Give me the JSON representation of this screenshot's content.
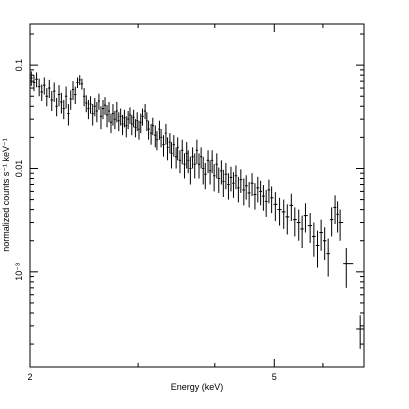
{
  "chart_data": {
    "type": "scatter",
    "title": "",
    "xlabel": "Energy (keV)",
    "ylabel": "normalized counts s⁻¹ keV⁻¹",
    "x_scale": "log",
    "y_scale": "log",
    "xlim": [
      2.0,
      7.0
    ],
    "ylim": [
      0.00012,
      0.25
    ],
    "x_ticks": [
      {
        "value": 2,
        "label": "2"
      },
      {
        "value": 5,
        "label": "5"
      }
    ],
    "y_ticks": [
      {
        "value": 0.1,
        "label": "0.1"
      },
      {
        "value": 0.01,
        "label": "0.01"
      },
      {
        "value": 0.001,
        "label": "10⁻³"
      }
    ],
    "grid": false,
    "legend": "none",
    "series": [
      {
        "color": "#000000",
        "points": [
          [
            2.01,
            0.075,
            0.012
          ],
          [
            2.03,
            0.068,
            0.012
          ],
          [
            2.05,
            0.073,
            0.012
          ],
          [
            2.07,
            0.062,
            0.012
          ],
          [
            2.09,
            0.055,
            0.01
          ],
          [
            2.11,
            0.064,
            0.012
          ],
          [
            2.13,
            0.05,
            0.01
          ],
          [
            2.15,
            0.06,
            0.012
          ],
          [
            2.17,
            0.046,
            0.01
          ],
          [
            2.19,
            0.056,
            0.012
          ],
          [
            2.21,
            0.04,
            0.008
          ],
          [
            2.23,
            0.052,
            0.012
          ],
          [
            2.25,
            0.044,
            0.01
          ],
          [
            2.27,
            0.038,
            0.008
          ],
          [
            2.29,
            0.05,
            0.012
          ],
          [
            2.31,
            0.034,
            0.008
          ],
          [
            2.33,
            0.047,
            0.01
          ],
          [
            2.35,
            0.058,
            0.012
          ],
          [
            2.37,
            0.052,
            0.01
          ],
          [
            2.39,
            0.068,
            0.008
          ],
          [
            2.41,
            0.072,
            0.008
          ],
          [
            2.43,
            0.066,
            0.008
          ],
          [
            2.45,
            0.05,
            0.01
          ],
          [
            2.47,
            0.043,
            0.008
          ],
          [
            2.49,
            0.038,
            0.008
          ],
          [
            2.51,
            0.042,
            0.008
          ],
          [
            2.53,
            0.034,
            0.008
          ],
          [
            2.55,
            0.04,
            0.008
          ],
          [
            2.57,
            0.036,
            0.008
          ],
          [
            2.59,
            0.045,
            0.008
          ],
          [
            2.61,
            0.032,
            0.008
          ],
          [
            2.63,
            0.038,
            0.008
          ],
          [
            2.65,
            0.041,
            0.008
          ],
          [
            2.67,
            0.033,
            0.008
          ],
          [
            2.69,
            0.036,
            0.008
          ],
          [
            2.71,
            0.028,
            0.006
          ],
          [
            2.73,
            0.034,
            0.008
          ],
          [
            2.75,
            0.03,
            0.006
          ],
          [
            2.77,
            0.036,
            0.008
          ],
          [
            2.79,
            0.029,
            0.006
          ],
          [
            2.81,
            0.032,
            0.006
          ],
          [
            2.83,
            0.027,
            0.006
          ],
          [
            2.85,
            0.031,
            0.006
          ],
          [
            2.87,
            0.026,
            0.006
          ],
          [
            2.89,
            0.03,
            0.006
          ],
          [
            2.91,
            0.033,
            0.006
          ],
          [
            2.93,
            0.027,
            0.006
          ],
          [
            2.95,
            0.031,
            0.006
          ],
          [
            2.97,
            0.025,
            0.005
          ],
          [
            2.99,
            0.029,
            0.006
          ],
          [
            3.01,
            0.024,
            0.005
          ],
          [
            3.03,
            0.028,
            0.006
          ],
          [
            3.05,
            0.032,
            0.006
          ],
          [
            3.08,
            0.036,
            0.006
          ],
          [
            3.1,
            0.029,
            0.006
          ],
          [
            3.12,
            0.024,
            0.005
          ],
          [
            3.15,
            0.022,
            0.005
          ],
          [
            3.17,
            0.026,
            0.005
          ],
          [
            3.2,
            0.021,
            0.005
          ],
          [
            3.22,
            0.019,
            0.004
          ],
          [
            3.25,
            0.024,
            0.005
          ],
          [
            3.27,
            0.02,
            0.004
          ],
          [
            3.3,
            0.017,
            0.004
          ],
          [
            3.33,
            0.022,
            0.005
          ],
          [
            3.35,
            0.016,
            0.004
          ],
          [
            3.38,
            0.018,
            0.004
          ],
          [
            3.4,
            0.014,
            0.004
          ],
          [
            3.43,
            0.017,
            0.004
          ],
          [
            3.46,
            0.013,
            0.003
          ],
          [
            3.48,
            0.016,
            0.004
          ],
          [
            3.51,
            0.012,
            0.003
          ],
          [
            3.54,
            0.015,
            0.004
          ],
          [
            3.57,
            0.011,
            0.003
          ],
          [
            3.6,
            0.014,
            0.004
          ],
          [
            3.62,
            0.012,
            0.003
          ],
          [
            3.65,
            0.01,
            0.003
          ],
          [
            3.68,
            0.013,
            0.003
          ],
          [
            3.71,
            0.011,
            0.003
          ],
          [
            3.74,
            0.015,
            0.004
          ],
          [
            3.77,
            0.011,
            0.003
          ],
          [
            3.8,
            0.013,
            0.003
          ],
          [
            3.83,
            0.01,
            0.003
          ],
          [
            3.86,
            0.0088,
            0.0025
          ],
          [
            3.9,
            0.012,
            0.003
          ],
          [
            3.93,
            0.0095,
            0.0025
          ],
          [
            3.96,
            0.012,
            0.003
          ],
          [
            3.99,
            0.0085,
            0.0025
          ],
          [
            4.03,
            0.011,
            0.003
          ],
          [
            4.06,
            0.008,
            0.0022
          ],
          [
            4.1,
            0.0095,
            0.0025
          ],
          [
            4.13,
            0.0075,
            0.0022
          ],
          [
            4.17,
            0.0088,
            0.0025
          ],
          [
            4.21,
            0.007,
            0.002
          ],
          [
            4.25,
            0.0082,
            0.0022
          ],
          [
            4.29,
            0.0072,
            0.002
          ],
          [
            4.33,
            0.0085,
            0.0022
          ],
          [
            4.37,
            0.0065,
            0.0018
          ],
          [
            4.41,
            0.0078,
            0.002
          ],
          [
            4.46,
            0.0062,
            0.0018
          ],
          [
            4.5,
            0.0068,
            0.0018
          ],
          [
            4.55,
            0.0058,
            0.0016
          ],
          [
            4.6,
            0.0072,
            0.0018
          ],
          [
            4.65,
            0.0056,
            0.0016
          ],
          [
            4.7,
            0.0065,
            0.0018
          ],
          [
            4.75,
            0.006,
            0.0016
          ],
          [
            4.8,
            0.0054,
            0.0015
          ],
          [
            4.85,
            0.0048,
            0.0014
          ],
          [
            4.9,
            0.0062,
            0.0016
          ],
          [
            4.95,
            0.0052,
            0.0015
          ],
          [
            5.02,
            0.0045,
            0.0014
          ],
          [
            5.1,
            0.004,
            0.0012
          ],
          [
            5.18,
            0.0038,
            0.0012
          ],
          [
            5.25,
            0.0034,
            0.0011
          ],
          [
            5.33,
            0.0044,
            0.0013
          ],
          [
            5.4,
            0.0032,
            0.001
          ],
          [
            5.48,
            0.003,
            0.001
          ],
          [
            5.55,
            0.0026,
            0.0009
          ],
          [
            5.62,
            0.0035,
            0.0011
          ],
          [
            5.72,
            0.0028,
            0.0009
          ],
          [
            5.8,
            0.0022,
            0.0008
          ],
          [
            5.88,
            0.0018,
            0.0007
          ],
          [
            5.96,
            0.0024,
            0.0008
          ],
          [
            6.04,
            0.002,
            0.0007
          ],
          [
            6.12,
            0.0015,
            0.0006
          ],
          [
            6.2,
            0.0032,
            0.001
          ],
          [
            6.28,
            0.0042,
            0.0013
          ],
          [
            6.34,
            0.0036,
            0.0012
          ],
          [
            6.4,
            0.003,
            0.001
          ],
          [
            6.55,
            0.0012,
            0.0005
          ],
          [
            6.9,
            0.00028,
            0.0001
          ]
        ]
      }
    ]
  }
}
